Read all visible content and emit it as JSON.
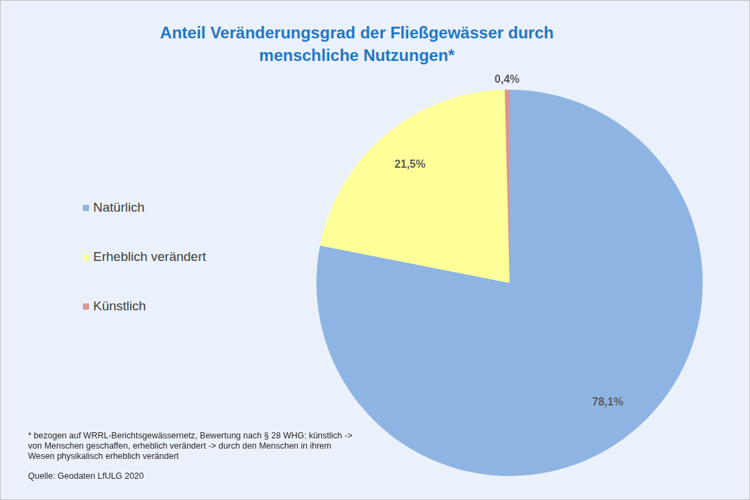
{
  "chart_data": {
    "type": "pie",
    "title": "Anteil Veränderungsgrad der Fließgewässer durch menschliche Nutzungen*",
    "categories": [
      "Natürlich",
      "Erheblich verändert",
      "Künstlich"
    ],
    "values": [
      78.1,
      21.5,
      0.4
    ],
    "value_labels": [
      "78,1%",
      "21,5%",
      "0,4%"
    ],
    "colors": [
      "#8eb4e3",
      "#ffff99",
      "#d99694"
    ],
    "data_labels": true,
    "legend": "left",
    "annotations": [
      "* bezogen auf WRRL-Berichtsgewässernetz, Bewertung nach § 28 WHG: künstlich -> von Menschen geschaffen, erheblich verändert -> durch den Menschen in ihrem Wesen physikalisch erheblich verändert",
      "Quelle: Geodaten LfULG 2020"
    ]
  }
}
